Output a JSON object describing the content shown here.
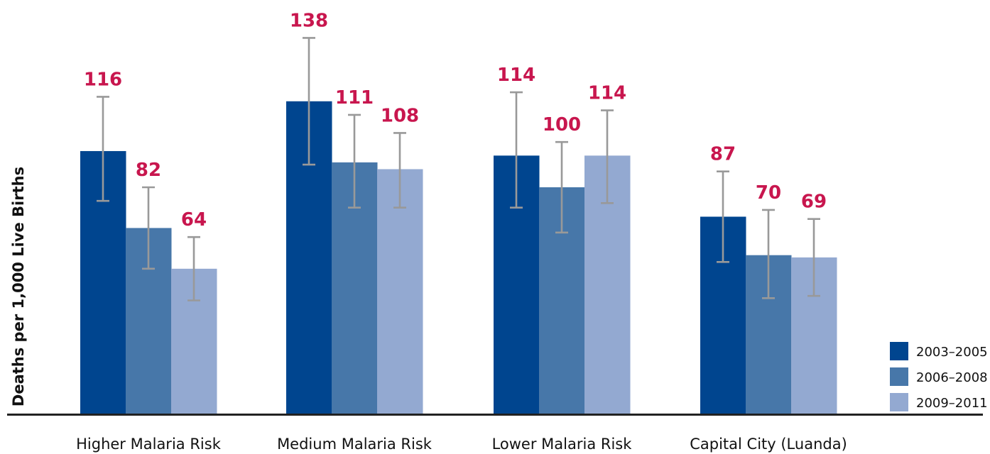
{
  "colors": {
    "series": [
      "#00458f",
      "#4777a9",
      "#93a9d1"
    ],
    "value_labels": "#c8164e",
    "error_bars": "#999999",
    "axis": "#222222",
    "text": "#111111"
  },
  "chart_data": {
    "type": "bar",
    "title": "",
    "xlabel": "",
    "ylabel": "Deaths per 1,000 Live Births",
    "categories": [
      "Higher Malaria Risk",
      "Medium Malaria Risk",
      "Lower Malaria Risk",
      "Capital City (Luanda)"
    ],
    "series": [
      {
        "name": "2003–2005",
        "values": [
          116,
          138,
          114,
          87
        ],
        "error_low": [
          94,
          110,
          91,
          67
        ],
        "error_high": [
          140,
          166,
          142,
          107
        ]
      },
      {
        "name": "2006–2008",
        "values": [
          82,
          111,
          100,
          70
        ],
        "error_low": [
          64,
          91,
          80,
          51
        ],
        "error_high": [
          100,
          132,
          120,
          90
        ]
      },
      {
        "name": "2009–2011",
        "values": [
          64,
          108,
          114,
          69
        ],
        "error_low": [
          50,
          91,
          93,
          52
        ],
        "error_high": [
          78,
          124,
          134,
          86
        ]
      }
    ],
    "ylim": [
      0,
      180
    ],
    "grid": false,
    "legend_position": "bottom-right"
  }
}
